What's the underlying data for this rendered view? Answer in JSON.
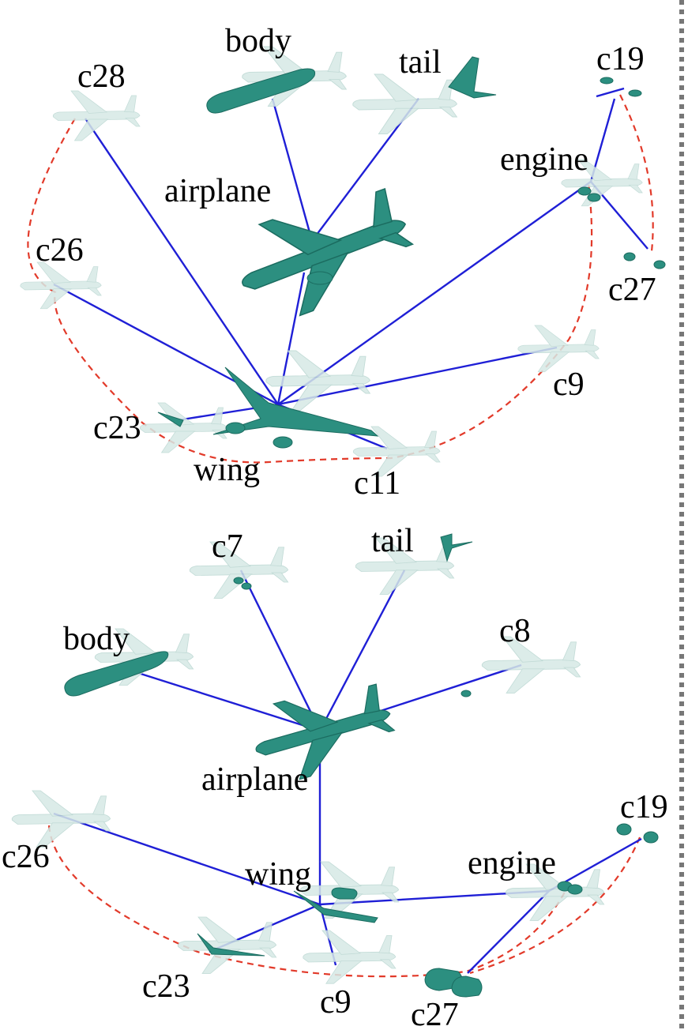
{
  "top_tree": {
    "root": "airplane",
    "nodes": [
      "body",
      "tail",
      "c19",
      "c28",
      "engine",
      "c26",
      "c27",
      "c9",
      "c23",
      "wing",
      "c11"
    ]
  },
  "bottom_tree": {
    "root": "airplane",
    "nodes": [
      "c7",
      "tail",
      "body",
      "c8",
      "c19",
      "c26",
      "engine",
      "wing",
      "c23",
      "c9",
      "c27"
    ]
  },
  "colors": {
    "edge": "#1f1fd6",
    "dashed_link": "#e23a2a",
    "part_highlight": "#2c8f80",
    "ghost": "#d7e9e6"
  }
}
